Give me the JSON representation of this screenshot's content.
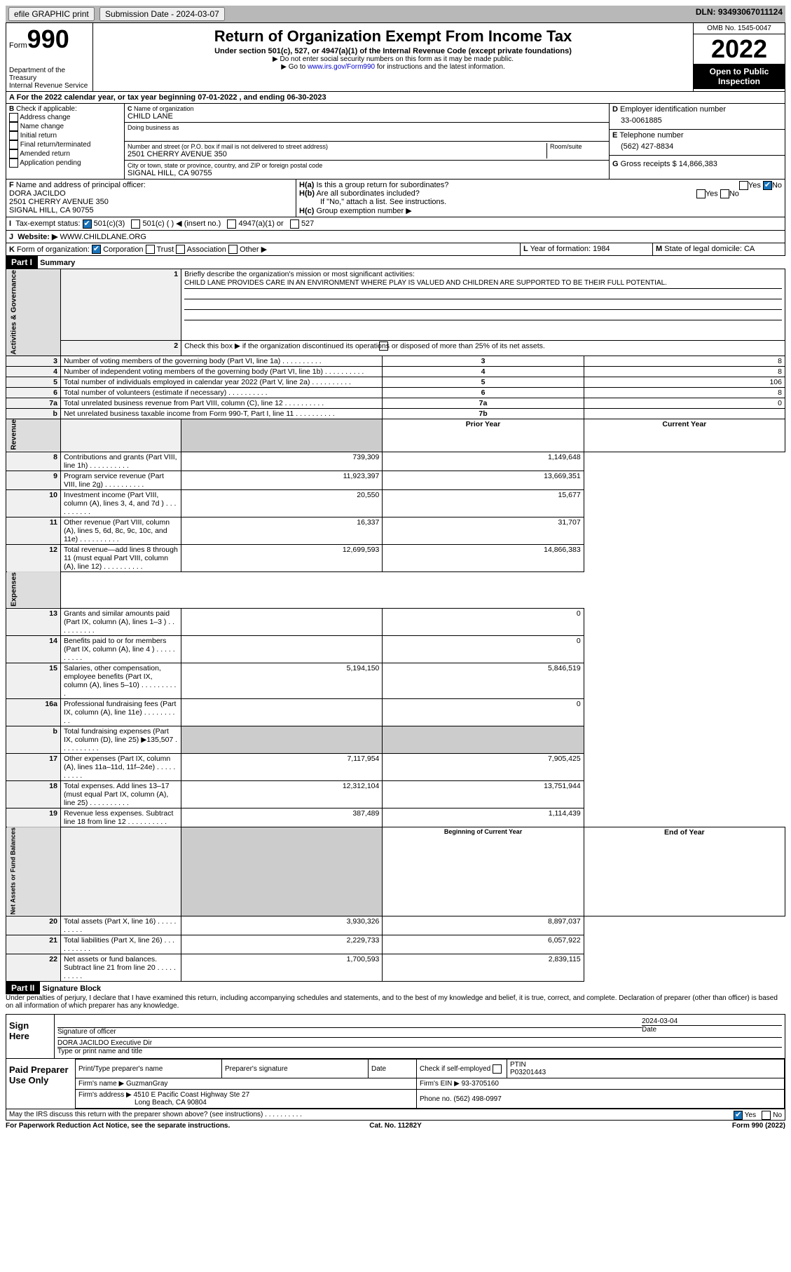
{
  "topbar": {
    "efile": "efile GRAPHIC print",
    "submission": "Submission Date - 2024-03-07",
    "dln": "DLN: 93493067011124"
  },
  "header": {
    "form_label": "Form",
    "form_number": "990",
    "dept": "Department of the Treasury",
    "irs": "Internal Revenue Service",
    "title": "Return of Organization Exempt From Income Tax",
    "sub": "Under section 501(c), 527, or 4947(a)(1) of the Internal Revenue Code (except private foundations)",
    "note1": "▶ Do not enter social security numbers on this form as it may be made public.",
    "note2_pre": "▶ Go to ",
    "note2_link": "www.irs.gov/Form990",
    "note2_post": " for instructions and the latest information.",
    "omb": "OMB No. 1545-0047",
    "year": "2022",
    "inspect": "Open to Public Inspection"
  },
  "period": {
    "line": "For the 2022 calendar year, or tax year beginning 07-01-2022   , and ending 06-30-2023"
  },
  "box_b": {
    "label": "Check if applicable:",
    "items": [
      "Address change",
      "Name change",
      "Initial return",
      "Final return/terminated",
      "Amended return",
      "Application pending"
    ]
  },
  "box_c": {
    "name_label": "Name of organization",
    "name": "CHILD LANE",
    "dba_label": "Doing business as",
    "street_label": "Number and street (or P.O. box if mail is not delivered to street address)",
    "room_label": "Room/suite",
    "street": "2501 CHERRY AVENUE 350",
    "city_label": "City or town, state or province, country, and ZIP or foreign postal code",
    "city": "SIGNAL HILL, CA  90755"
  },
  "box_d": {
    "label": "Employer identification number",
    "ein": "33-0061885"
  },
  "box_e": {
    "label": "Telephone number",
    "phone": "(562) 427-8834"
  },
  "box_g": {
    "label": "Gross receipts $",
    "val": "14,866,383"
  },
  "box_f": {
    "label": "Name and address of principal officer:",
    "name": "DORA JACILDO",
    "addr1": "2501 CHERRY AVENUE 350",
    "addr2": "SIGNAL HILL, CA  90755"
  },
  "box_h": {
    "ha": "Is this a group return for subordinates?",
    "hb": "Are all subordinates included?",
    "hb_note": "If \"No,\" attach a list. See instructions.",
    "hc": "Group exemption number ▶"
  },
  "box_i": {
    "label": "Tax-exempt status:",
    "opts": [
      "501(c)(3)",
      "501(c) (  ) ◀ (insert no.)",
      "4947(a)(1) or",
      "527"
    ]
  },
  "box_j": {
    "label": "Website: ▶",
    "url": "WWW.CHILDLANE.ORG"
  },
  "box_k": {
    "label": "Form of organization:",
    "opts": [
      "Corporation",
      "Trust",
      "Association",
      "Other ▶"
    ]
  },
  "box_l": {
    "label": "Year of formation:",
    "val": "1984"
  },
  "box_m": {
    "label": "State of legal domicile:",
    "val": "CA"
  },
  "part1": {
    "title": "Part I",
    "subtitle": "Summary",
    "line1_label": "Briefly describe the organization's mission or most significant activities:",
    "mission": "CHILD LANE PROVIDES CARE IN AN ENVIRONMENT WHERE PLAY IS VALUED AND CHILDREN ARE SUPPORTED TO BE THEIR FULL POTENTIAL.",
    "line2": "Check this box ▶       if the organization discontinued its operations or disposed of more than 25% of its net assets.",
    "rows_simple": [
      {
        "n": "3",
        "label": "Number of voting members of the governing body (Part VI, line 1a)",
        "lno": "3",
        "val": "8"
      },
      {
        "n": "4",
        "label": "Number of independent voting members of the governing body (Part VI, line 1b)",
        "lno": "4",
        "val": "8"
      },
      {
        "n": "5",
        "label": "Total number of individuals employed in calendar year 2022 (Part V, line 2a)",
        "lno": "5",
        "val": "106"
      },
      {
        "n": "6",
        "label": "Total number of volunteers (estimate if necessary)",
        "lno": "6",
        "val": "8"
      },
      {
        "n": "7a",
        "label": "Total unrelated business revenue from Part VIII, column (C), line 12",
        "lno": "7a",
        "val": "0"
      },
      {
        "n": "b",
        "label": "Net unrelated business taxable income from Form 990-T, Part I, line 11",
        "lno": "7b",
        "val": ""
      }
    ],
    "col_prior": "Prior Year",
    "col_current": "Current Year",
    "rows_two": [
      {
        "n": "8",
        "label": "Contributions and grants (Part VIII, line 1h)",
        "p": "739,309",
        "c": "1,149,648"
      },
      {
        "n": "9",
        "label": "Program service revenue (Part VIII, line 2g)",
        "p": "11,923,397",
        "c": "13,669,351"
      },
      {
        "n": "10",
        "label": "Investment income (Part VIII, column (A), lines 3, 4, and 7d )",
        "p": "20,550",
        "c": "15,677"
      },
      {
        "n": "11",
        "label": "Other revenue (Part VIII, column (A), lines 5, 6d, 8c, 9c, 10c, and 11e)",
        "p": "16,337",
        "c": "31,707"
      },
      {
        "n": "12",
        "label": "Total revenue—add lines 8 through 11 (must equal Part VIII, column (A), line 12)",
        "p": "12,699,593",
        "c": "14,866,383"
      },
      {
        "n": "13",
        "label": "Grants and similar amounts paid (Part IX, column (A), lines 1–3 )",
        "p": "",
        "c": "0"
      },
      {
        "n": "14",
        "label": "Benefits paid to or for members (Part IX, column (A), line 4 )",
        "p": "",
        "c": "0"
      },
      {
        "n": "15",
        "label": "Salaries, other compensation, employee benefits (Part IX, column (A), lines 5–10)",
        "p": "5,194,150",
        "c": "5,846,519"
      },
      {
        "n": "16a",
        "label": "Professional fundraising fees (Part IX, column (A), line 11e)",
        "p": "",
        "c": "0"
      },
      {
        "n": "b",
        "label": "Total fundraising expenses (Part IX, column (D), line 25) ▶135,507",
        "p": "shade",
        "c": "shade"
      },
      {
        "n": "17",
        "label": "Other expenses (Part IX, column (A), lines 11a–11d, 11f–24e)",
        "p": "7,117,954",
        "c": "7,905,425"
      },
      {
        "n": "18",
        "label": "Total expenses. Add lines 13–17 (must equal Part IX, column (A), line 25)",
        "p": "12,312,104",
        "c": "13,751,944"
      },
      {
        "n": "19",
        "label": "Revenue less expenses. Subtract line 18 from line 12",
        "p": "387,489",
        "c": "1,114,439"
      }
    ],
    "col_begin": "Beginning of Current Year",
    "col_end": "End of Year",
    "rows_net": [
      {
        "n": "20",
        "label": "Total assets (Part X, line 16)",
        "p": "3,930,326",
        "c": "8,897,037"
      },
      {
        "n": "21",
        "label": "Total liabilities (Part X, line 26)",
        "p": "2,229,733",
        "c": "6,057,922"
      },
      {
        "n": "22",
        "label": "Net assets or fund balances. Subtract line 21 from line 20",
        "p": "1,700,593",
        "c": "2,839,115"
      }
    ],
    "tabs": [
      "Activities & Governance",
      "Revenue",
      "Expenses",
      "Net Assets or Fund Balances"
    ]
  },
  "part2": {
    "title": "Part II",
    "subtitle": "Signature Block",
    "decl": "Under penalties of perjury, I declare that I have examined this return, including accompanying schedules and statements, and to the best of my knowledge and belief, it is true, correct, and complete. Declaration of preparer (other than officer) is based on all information of which preparer has any knowledge.",
    "sign_here": "Sign Here",
    "sig_officer": "Signature of officer",
    "sig_date": "Date",
    "date_val": "2024-03-04",
    "officer_name": "DORA JACILDO  Executive Dir",
    "type_name": "Type or print name and title",
    "paid": "Paid Preparer Use Only",
    "prep_name_label": "Print/Type preparer's name",
    "prep_sig_label": "Preparer's signature",
    "date_label": "Date",
    "check_self": "Check         if self-employed",
    "ptin_label": "PTIN",
    "ptin": "P03201443",
    "firm_name_label": "Firm's name    ▶",
    "firm_name": "GuzmanGray",
    "firm_ein_label": "Firm's EIN ▶",
    "firm_ein": "93-3705160",
    "firm_addr_label": "Firm's address ▶",
    "firm_addr1": "4510 E Pacific Coast Highway Ste 27",
    "firm_addr2": "Long Beach, CA  90804",
    "firm_phone_label": "Phone no.",
    "firm_phone": "(562) 498-0997",
    "discuss": "May the IRS discuss this return with the preparer shown above? (see instructions)"
  },
  "footer": {
    "left": "For Paperwork Reduction Act Notice, see the separate instructions.",
    "mid": "Cat. No. 11282Y",
    "right": "Form 990 (2022)"
  }
}
